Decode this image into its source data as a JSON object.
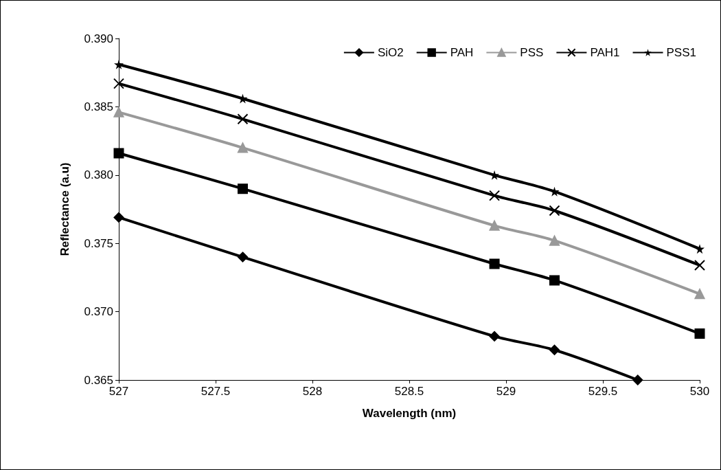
{
  "chart_data": {
    "type": "line",
    "xlabel": "Wavelength (nm)",
    "ylabel": "Reflectance (a.u)",
    "xlim": [
      527,
      530
    ],
    "ylim": [
      0.365,
      0.39
    ],
    "xticks": [
      527,
      527.5,
      528,
      528.5,
      529,
      529.5,
      530
    ],
    "yticks": [
      {
        "value": 0.365,
        "label": "0.365"
      },
      {
        "value": 0.37,
        "label": "0.370"
      },
      {
        "value": 0.375,
        "label": "0.375"
      },
      {
        "value": 0.38,
        "label": "0.380"
      },
      {
        "value": 0.385,
        "label": "0.385"
      },
      {
        "value": 0.39,
        "label": "0.390"
      }
    ],
    "grid": false,
    "legend": "top right",
    "line_style": "solid",
    "series": [
      {
        "name": "SiO2",
        "color": "#000000",
        "marker": "diamond",
        "x": [
          527,
          527.64,
          528.94,
          529.25,
          529.68
        ],
        "values": [
          0.3769,
          0.374,
          0.3682,
          0.3672,
          0.365
        ]
      },
      {
        "name": "PAH",
        "color": "#000000",
        "marker": "square",
        "x": [
          527,
          527.64,
          528.94,
          529.25,
          530
        ],
        "values": [
          0.3816,
          0.379,
          0.3735,
          0.3723,
          0.3684
        ]
      },
      {
        "name": "PSS",
        "color": "#999999",
        "marker": "triangle",
        "x": [
          527,
          527.64,
          528.94,
          529.25,
          530
        ],
        "values": [
          0.3846,
          0.382,
          0.3763,
          0.3752,
          0.3713
        ]
      },
      {
        "name": "PAH1",
        "color": "#000000",
        "marker": "cross",
        "x": [
          527,
          527.64,
          528.94,
          529.25,
          530
        ],
        "values": [
          0.3867,
          0.3841,
          0.3785,
          0.3774,
          0.3734
        ]
      },
      {
        "name": "PSS1",
        "color": "#000000",
        "marker": "star",
        "x": [
          527,
          527.64,
          528.94,
          529.25,
          530
        ],
        "values": [
          0.3881,
          0.3856,
          0.38,
          0.3788,
          0.3746
        ]
      }
    ]
  }
}
